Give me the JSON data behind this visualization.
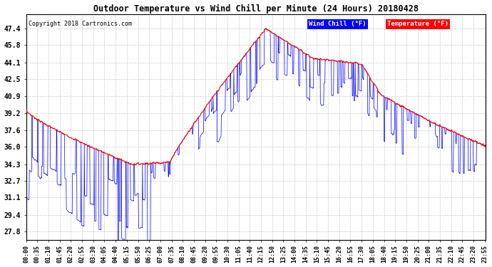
{
  "title": "Outdoor Temperature vs Wind Chill per Minute (24 Hours) 20180428",
  "copyright": "Copyright 2018 Cartronics.com",
  "legend_wind_chill": "Wind Chill (°F)",
  "legend_temperature": "Temperature (°F)",
  "wind_chill_color": "#0000FF",
  "temperature_color": "#FF0000",
  "legend_wc_bg": "#0000FF",
  "legend_temp_bg": "#FF0000",
  "background_color": "#FFFFFF",
  "grid_color": "#CCCCCC",
  "yticks": [
    27.8,
    29.4,
    31.1,
    32.7,
    34.3,
    36.0,
    37.6,
    39.2,
    40.9,
    42.5,
    44.1,
    45.8,
    47.4
  ],
  "ymin": 27.0,
  "ymax": 48.8,
  "total_minutes": 1440,
  "xtick_interval": 35,
  "xtick_labels": [
    "00:00",
    "00:35",
    "01:10",
    "01:45",
    "02:20",
    "02:55",
    "03:30",
    "04:05",
    "04:40",
    "05:15",
    "05:50",
    "06:25",
    "07:00",
    "07:35",
    "08:10",
    "08:45",
    "09:20",
    "09:55",
    "10:30",
    "11:05",
    "11:40",
    "12:15",
    "12:50",
    "13:25",
    "14:00",
    "14:35",
    "15:10",
    "15:45",
    "16:20",
    "16:55",
    "17:30",
    "18:05",
    "18:40",
    "19:15",
    "19:50",
    "20:25",
    "21:00",
    "21:35",
    "22:10",
    "22:45",
    "23:20",
    "23:55"
  ],
  "figwidth": 6.9,
  "figheight": 3.75,
  "dpi": 100
}
